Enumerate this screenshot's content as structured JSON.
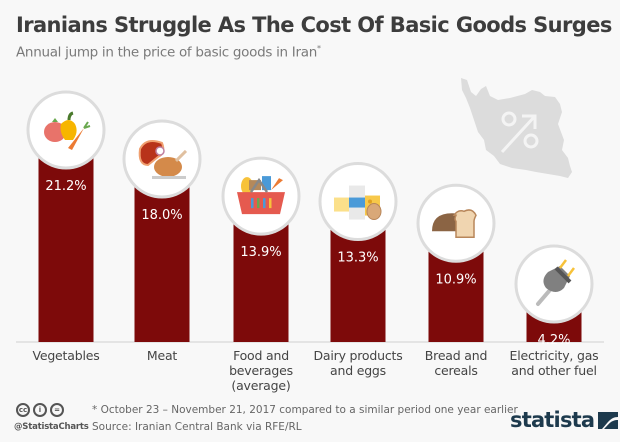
{
  "header": {
    "title": "Iranians Struggle As The Cost Of Basic Goods Surges",
    "subtitle": "Annual jump in the price of basic goods in Iran",
    "subtitle_mark": "*"
  },
  "colors": {
    "bar": "#7d0a0a",
    "circle_border": "#dcdcdc",
    "map": "#dcdcdc",
    "brand": "#1d3a4d"
  },
  "chart_data": {
    "type": "bar",
    "title": "Iranians Struggle As The Cost Of Basic Goods Surges",
    "subtitle": "Annual jump in the price of basic goods in Iran*",
    "xlabel": "",
    "ylabel": "",
    "ylim": [
      0,
      21.2
    ],
    "grid": false,
    "categories": [
      "Vegetables",
      "Meat",
      "Food and beverages (average)",
      "Dairy products and eggs",
      "Bread and cereals",
      "Electricity, gas and other fuel"
    ],
    "values": [
      21.2,
      18.0,
      13.9,
      13.3,
      10.9,
      4.2
    ],
    "value_labels": [
      "21.2%",
      "18.0%",
      "13.9%",
      "13.3%",
      "10.9%",
      "4.2%"
    ],
    "icons": [
      "vegetables-icon",
      "meat-icon",
      "food-basket-icon",
      "dairy-icon",
      "bread-icon",
      "plug-icon"
    ],
    "label_lines": [
      [
        "Vegetables"
      ],
      [
        "Meat"
      ],
      [
        "Food and",
        "beverages",
        "(average)"
      ],
      [
        "Dairy products",
        "and eggs"
      ],
      [
        "Bread and",
        "cereals"
      ],
      [
        "Electricity, gas",
        "and other fuel"
      ]
    ]
  },
  "footer": {
    "footnote": "* October 23 – November 21, 2017 compared to a similar period one year earlier",
    "source": "Source: Iranian Central Bank via RFE/RL",
    "handle": "@StatistaCharts",
    "license_icons": [
      "cc",
      "by",
      "nd"
    ],
    "license_glyphs": [
      "cc",
      "i",
      "="
    ],
    "brand": "statista"
  }
}
